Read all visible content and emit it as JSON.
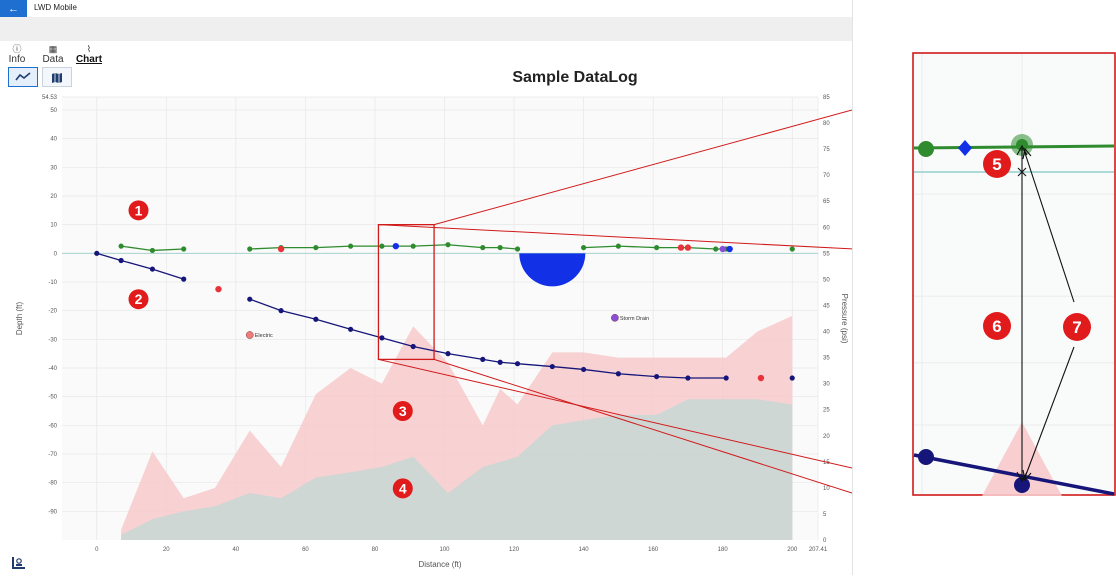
{
  "window": {
    "title": "LWD Mobile",
    "back_icon": "←"
  },
  "tabs": [
    {
      "label": "Info",
      "icon": "info-icon",
      "glyph": "ⓘ"
    },
    {
      "label": "Data",
      "icon": "grid-icon",
      "glyph": "▦"
    },
    {
      "label": "Chart",
      "icon": "chart-icon",
      "glyph": "⌇",
      "active": true
    }
  ],
  "view_toggles": [
    {
      "icon": "line-chart-icon",
      "selected": true
    },
    {
      "icon": "map-icon",
      "selected": false
    }
  ],
  "colors": {
    "accent": "#1f6fd1",
    "green_series": "#2e8b2e",
    "navy_series": "#16167a",
    "area_pink": "#f7c9cb",
    "area_grey": "#c9d7d4",
    "callout": "#e11b1b",
    "zoom_frame": "#d11a1a"
  },
  "chart_data": {
    "type": "line",
    "title": "Sample DataLog",
    "xlabel": "Distance (ft)",
    "ylabel": "Depth (ft)",
    "y2label": "Pressure (psi)",
    "xlim": [
      -10,
      207.41
    ],
    "ylim": [
      -100,
      54.53
    ],
    "y2lim": [
      0,
      85
    ],
    "x_ticks": [
      "0",
      "20",
      "40",
      "60",
      "80",
      "100",
      "120",
      "140",
      "160",
      "180",
      "200",
      "207.41"
    ],
    "y_ticks": [
      "54.53",
      "50",
      "40",
      "30",
      "20",
      "10",
      "0",
      "-10",
      "-20",
      "-30",
      "-40",
      "-50",
      "-60",
      "-70",
      "-80",
      "-90"
    ],
    "y2_ticks": [
      "85",
      "80",
      "75",
      "70",
      "65",
      "60",
      "55",
      "50",
      "45",
      "40",
      "35",
      "30",
      "25",
      "20",
      "15",
      "10",
      "5",
      "0"
    ],
    "grid": true,
    "reference_line_y": 0,
    "series": [
      {
        "kind": "line",
        "color": "green",
        "segments": [
          [
            [
              7,
              2.5
            ],
            [
              16,
              1
            ],
            [
              25,
              1.5
            ]
          ],
          [
            [
              44,
              1.5
            ],
            [
              53,
              2
            ],
            [
              63,
              2
            ],
            [
              73,
              2.5
            ],
            [
              82,
              2.5
            ],
            [
              91,
              2.5
            ],
            [
              101,
              3
            ],
            [
              111,
              2
            ],
            [
              116,
              2
            ],
            [
              121,
              1.5
            ]
          ],
          [
            [
              140,
              2
            ],
            [
              150,
              2.5
            ],
            [
              161,
              2
            ],
            [
              170,
              2
            ],
            [
              178,
              1.5
            ],
            [
              181,
              1.5
            ]
          ],
          [
            [
              200,
              1.5
            ]
          ]
        ]
      },
      {
        "kind": "line",
        "color": "navy",
        "segments": [
          [
            [
              0,
              0
            ],
            [
              7,
              -2.5
            ],
            [
              16,
              -5.5
            ],
            [
              25,
              -9
            ]
          ],
          [
            [
              44,
              -16
            ],
            [
              53,
              -20
            ],
            [
              63,
              -23
            ],
            [
              73,
              -26.5
            ],
            [
              82,
              -29.5
            ],
            [
              91,
              -32.5
            ],
            [
              101,
              -35
            ],
            [
              111,
              -37
            ],
            [
              116,
              -38
            ],
            [
              121,
              -38.5
            ],
            [
              131,
              -39.5
            ],
            [
              140,
              -40.5
            ],
            [
              150,
              -42
            ],
            [
              161,
              -43
            ],
            [
              170,
              -43.5
            ],
            [
              181,
              -43.5
            ]
          ],
          [
            [
              200,
              -43.5
            ]
          ]
        ]
      },
      {
        "kind": "area",
        "color": "pink",
        "axis": "pressure",
        "x": [
          7,
          16,
          25,
          34,
          44,
          53,
          63,
          73,
          82,
          91,
          101,
          111,
          116,
          121,
          131,
          140,
          150,
          161,
          170,
          181,
          190,
          200
        ],
        "y": [
          2,
          17,
          8,
          10,
          21,
          14,
          28,
          33,
          30,
          41,
          34,
          22,
          29,
          26,
          36,
          36,
          35,
          35,
          35,
          35,
          40,
          43
        ]
      },
      {
        "kind": "area",
        "color": "grey",
        "axis": "pressure",
        "x": [
          7,
          16,
          25,
          34,
          44,
          53,
          63,
          73,
          82,
          91,
          101,
          111,
          116,
          121,
          131,
          140,
          150,
          161,
          170,
          181,
          190,
          200
        ],
        "y": [
          1,
          4,
          5.5,
          6.5,
          9,
          8,
          12,
          13,
          14,
          16,
          9,
          14,
          15,
          16,
          22,
          23,
          24,
          24,
          27,
          27,
          27,
          26
        ]
      }
    ],
    "markers": [
      {
        "shape": "dot",
        "color": "red",
        "x": 53,
        "y": 1.5
      },
      {
        "shape": "dot",
        "color": "blue",
        "x": 86,
        "y": 2.5
      },
      {
        "shape": "dot",
        "color": "red",
        "x": 168,
        "y": 2
      },
      {
        "shape": "dot",
        "color": "red",
        "x": 170,
        "y": 2
      },
      {
        "shape": "dot",
        "color": "purple",
        "x": 180,
        "y": 1.5
      },
      {
        "shape": "dot",
        "color": "blue",
        "x": 182,
        "y": 1.5
      },
      {
        "shape": "semicircle",
        "color": "blue",
        "x": 131,
        "y": 0,
        "radius_ft": 9.5
      },
      {
        "shape": "dot",
        "color": "red",
        "x": 35,
        "y": -12.5
      },
      {
        "shape": "dot",
        "color": "red",
        "x": 191,
        "y": -43.5
      },
      {
        "shape": "dot",
        "color": "salmon",
        "x": 44,
        "y": -28.5,
        "label": "Electric"
      },
      {
        "shape": "dot",
        "color": "purple",
        "x": 149,
        "y": -22.5,
        "label": "Storm Drain"
      }
    ],
    "callouts": [
      {
        "label": "1",
        "x": 12,
        "y": 15
      },
      {
        "label": "2",
        "x": 12,
        "y": -16
      },
      {
        "label": "3",
        "x": 88,
        "y": -55
      },
      {
        "label": "4",
        "x": 88,
        "y": -82
      }
    ],
    "zoom_region": {
      "x": [
        81,
        97
      ],
      "y": [
        -37,
        10
      ]
    },
    "zoom_callouts": [
      {
        "label": "5",
        "position": "upper-left"
      },
      {
        "label": "6",
        "position": "middle-left"
      },
      {
        "label": "7",
        "position": "middle-right"
      }
    ]
  }
}
